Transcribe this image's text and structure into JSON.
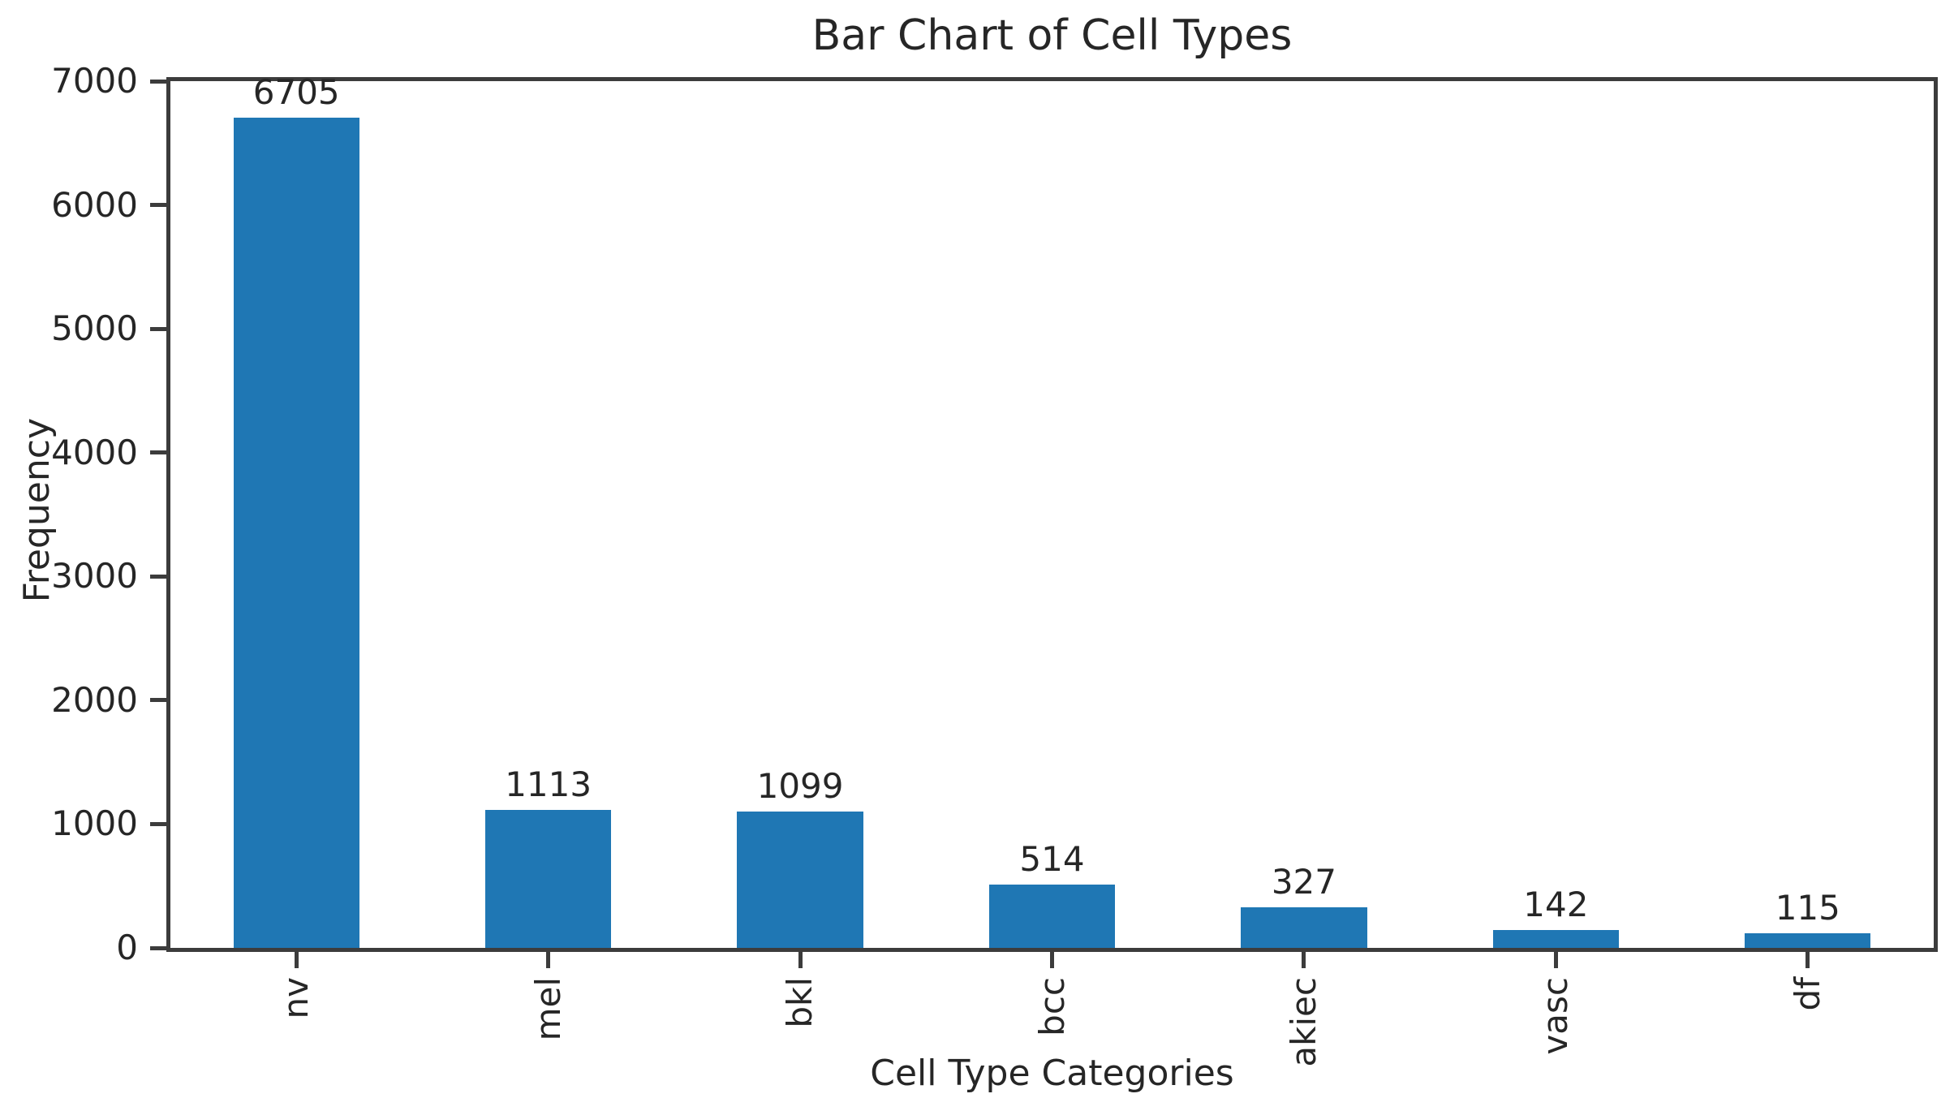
{
  "chart_data": {
    "type": "bar",
    "title": "Bar Chart of Cell Types",
    "xlabel": "Cell Type Categories",
    "ylabel": "Frequency",
    "categories": [
      "nv",
      "mel",
      "bkl",
      "bcc",
      "akiec",
      "vasc",
      "df"
    ],
    "values": [
      6705,
      1113,
      1099,
      514,
      327,
      142,
      115
    ],
    "bar_value_labels": [
      "6705",
      "1113",
      "1099",
      "514",
      "327",
      "142",
      "115"
    ],
    "yticks": [
      0,
      1000,
      2000,
      3000,
      4000,
      5000,
      6000,
      7000
    ],
    "ylim": [
      0,
      7000
    ],
    "bar_color": "#1f77b4",
    "spine_color": "#3c3c3c",
    "text_color": "#262626",
    "xtick_rotation": 90,
    "bar_width_fraction": 0.5,
    "grid": false,
    "legend": null
  }
}
